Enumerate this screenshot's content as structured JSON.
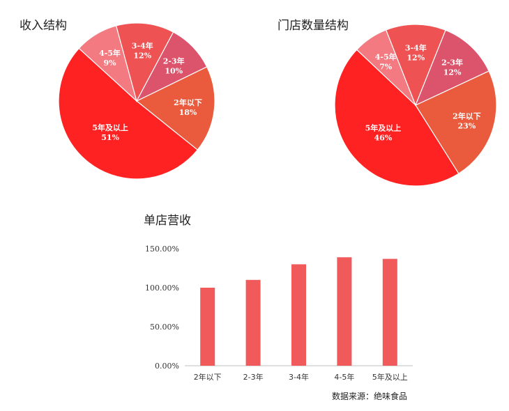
{
  "chart_data": [
    {
      "type": "pie",
      "title": "收入结构",
      "slices": [
        {
          "label": "2年以下",
          "value": 18,
          "text": "18%",
          "color": "#ea5a3c"
        },
        {
          "label": "5年及以上",
          "value": 51,
          "text": "51%",
          "color": "#ff2222"
        },
        {
          "label": "4-5年",
          "value": 9,
          "text": "9%",
          "color": "#f27a80"
        },
        {
          "label": "3-4年",
          "value": 12,
          "text": "12%",
          "color": "#ee5253"
        },
        {
          "label": "2-3年",
          "value": 10,
          "text": "10%",
          "color": "#dc546c"
        }
      ]
    },
    {
      "type": "pie",
      "title": "门店数量结构",
      "slices": [
        {
          "label": "2年以下",
          "value": 23,
          "text": "23%",
          "color": "#ea5a3c"
        },
        {
          "label": "5年及以上",
          "value": 46,
          "text": "46%",
          "color": "#ff2222"
        },
        {
          "label": "4-5年",
          "value": 7,
          "text": "7%",
          "color": "#f27a80"
        },
        {
          "label": "3-4年",
          "value": 12,
          "text": "12%",
          "color": "#ee5253"
        },
        {
          "label": "2-3年",
          "value": 12,
          "text": "12%",
          "color": "#dc546c"
        }
      ]
    },
    {
      "type": "bar",
      "title": "单店营收",
      "categories": [
        "2年以下",
        "2-3年",
        "3-4年",
        "4-5年",
        "5年及以上"
      ],
      "values": [
        100,
        110,
        130,
        139,
        137
      ],
      "ylim": [
        0,
        150
      ],
      "yticks": [
        "0.00%",
        "50.00%",
        "100.00%",
        "150.00%"
      ],
      "ytick_values": [
        0,
        50,
        100,
        150
      ],
      "color": "#f05a5a",
      "grid": false
    }
  ],
  "source": "数据来源：绝味食品"
}
